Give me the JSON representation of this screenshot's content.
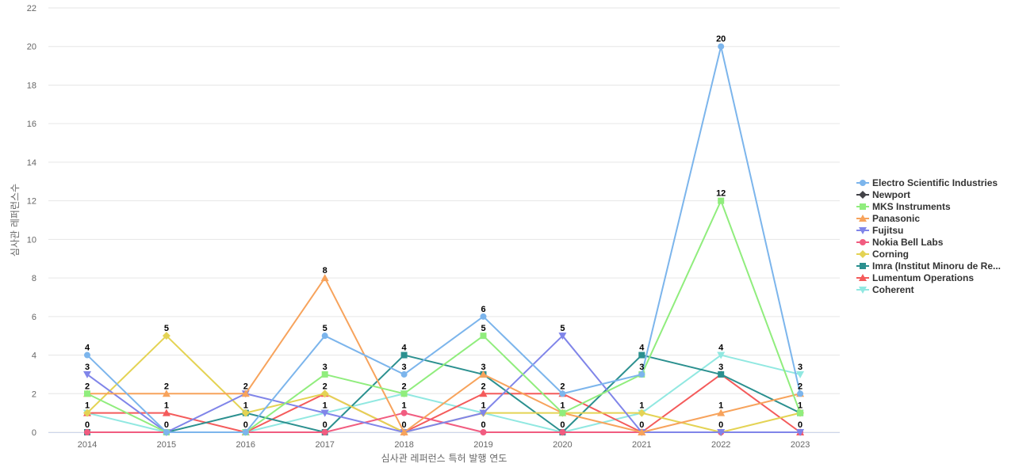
{
  "chart_data": {
    "type": "line",
    "title": "",
    "xlabel": "심사관 레퍼런스 특허 발행 연도",
    "ylabel": "심사관 레퍼런스수",
    "ylim": [
      0,
      22
    ],
    "yticks": [
      0,
      2,
      4,
      6,
      8,
      10,
      12,
      14,
      16,
      18,
      20,
      22
    ],
    "grid": true,
    "legend_position": "right",
    "categories": [
      "2014",
      "2015",
      "2016",
      "2017",
      "2018",
      "2019",
      "2020",
      "2021",
      "2022",
      "2023"
    ],
    "series": [
      {
        "name": "Electro Scientific Industries",
        "color": "#7cb5ec",
        "marker": "circle",
        "values": [
          4,
          0,
          0,
          5,
          3,
          6,
          2,
          3,
          20,
          2
        ]
      },
      {
        "name": "Newport",
        "color": "#434348",
        "marker": "diamond",
        "values": [
          null,
          null,
          null,
          null,
          null,
          null,
          null,
          null,
          null,
          null
        ]
      },
      {
        "name": "MKS Instruments",
        "color": "#90ed7d",
        "marker": "square",
        "values": [
          2,
          0,
          0,
          3,
          2,
          5,
          1,
          3,
          12,
          1
        ]
      },
      {
        "name": "Panasonic",
        "color": "#f7a35c",
        "marker": "triangle",
        "values": [
          2,
          2,
          2,
          8,
          0,
          3,
          1,
          0,
          1,
          2
        ]
      },
      {
        "name": "Fujitsu",
        "color": "#8085e9",
        "marker": "triangle-down",
        "values": [
          3,
          0,
          2,
          1,
          0,
          1,
          5,
          0,
          0,
          0
        ]
      },
      {
        "name": "Nokia Bell Labs",
        "color": "#f15c80",
        "marker": "circle",
        "values": [
          0,
          0,
          0,
          0,
          1,
          0,
          0,
          0,
          0,
          0
        ]
      },
      {
        "name": "Corning",
        "color": "#e4d354",
        "marker": "diamond",
        "values": [
          1,
          5,
          1,
          2,
          0,
          1,
          1,
          1,
          0,
          1
        ]
      },
      {
        "name": "Imra (Institut Minoru de Re...",
        "color": "#2b908f",
        "marker": "square",
        "values": [
          0,
          0,
          1,
          0,
          4,
          3,
          0,
          4,
          3,
          1
        ]
      },
      {
        "name": "Lumentum Operations",
        "color": "#f45b5b",
        "marker": "triangle",
        "values": [
          1,
          1,
          0,
          2,
          0,
          2,
          2,
          0,
          3,
          0
        ]
      },
      {
        "name": "Coherent",
        "color": "#91e8e1",
        "marker": "triangle-down",
        "values": [
          1,
          0,
          0,
          1,
          2,
          1,
          0,
          1,
          4,
          3
        ]
      }
    ],
    "data_labels": [
      {
        "x": "2014",
        "values": [
          "4",
          "3",
          "2",
          "1",
          "0"
        ]
      },
      {
        "x": "2015",
        "values": [
          "5",
          "2",
          "1",
          "0"
        ]
      },
      {
        "x": "2016",
        "values": [
          "2",
          "1",
          "0"
        ]
      },
      {
        "x": "2017",
        "values": [
          "8",
          "5",
          "3",
          "2",
          "1",
          "0"
        ]
      },
      {
        "x": "2018",
        "values": [
          "4",
          "3",
          "2",
          "1",
          "0"
        ]
      },
      {
        "x": "2019",
        "values": [
          "6",
          "5",
          "3",
          "2",
          "1",
          "0"
        ]
      },
      {
        "x": "2020",
        "values": [
          "5",
          "2",
          "1",
          "0"
        ]
      },
      {
        "x": "2021",
        "values": [
          "4",
          "3",
          "1",
          "0"
        ]
      },
      {
        "x": "2022",
        "values": [
          "20",
          "12",
          "4",
          "3",
          "1",
          "0"
        ]
      },
      {
        "x": "2023",
        "values": [
          "3",
          "2",
          "1",
          "0"
        ]
      }
    ]
  }
}
